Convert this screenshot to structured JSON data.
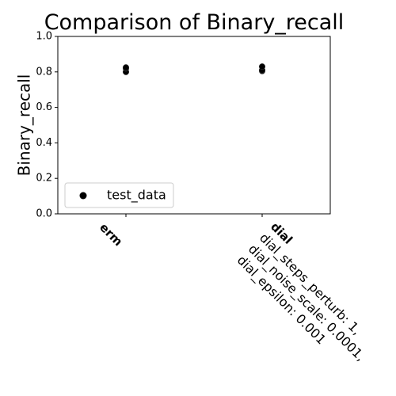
{
  "chart_data": {
    "type": "strip",
    "title": "Comparison of Binary_recall",
    "ylabel": "Binary_recall",
    "categories": [
      "erm",
      "dial\ndial_steps_perturb: 1,\ndial_noise_scale: 0.0001,\ndial_epsilon: 0.001"
    ],
    "series": [
      {
        "name": "test_data",
        "color": "#000000",
        "values": [
          [
            0.8,
            0.82,
            0.825
          ],
          [
            0.805,
            0.81,
            0.83
          ]
        ]
      }
    ],
    "ylim": [
      0,
      1
    ],
    "yticks": [
      {
        "value": 0,
        "label": "0.0"
      },
      {
        "value": 0.2,
        "label": "0.2"
      },
      {
        "value": 0.4,
        "label": "0.4"
      },
      {
        "value": 0.6,
        "label": "0.6"
      },
      {
        "value": 0.8,
        "label": "0.8"
      },
      {
        "value": 1,
        "label": "1.0"
      }
    ],
    "legend": "lower left"
  }
}
